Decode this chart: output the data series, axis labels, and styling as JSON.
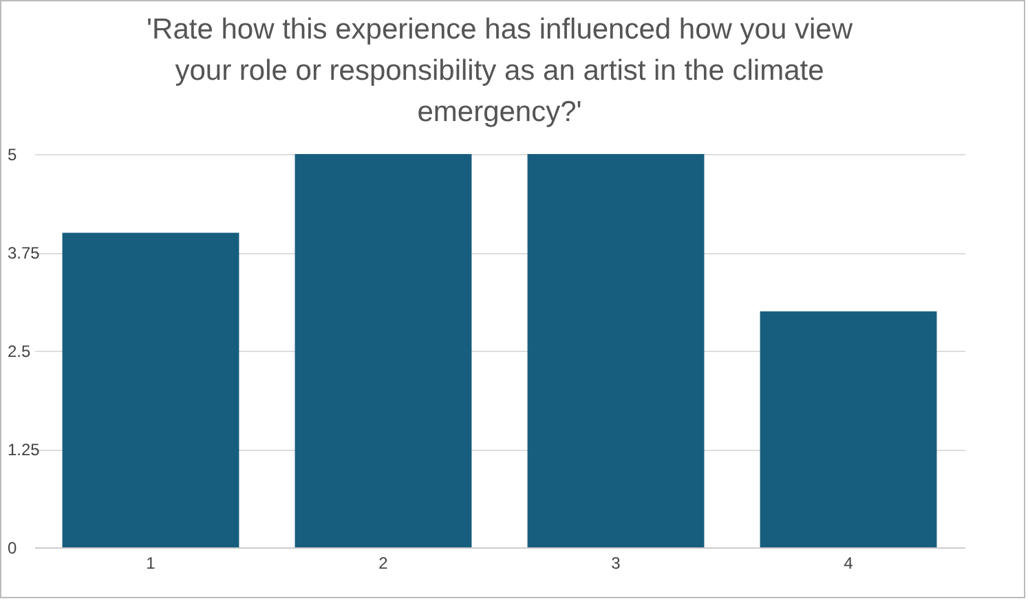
{
  "chart_data": {
    "type": "bar",
    "title": "'Rate how this experience has influenced how you view your role or responsibility as an artist in the climate emergency?'",
    "categories": [
      "1",
      "2",
      "3",
      "4"
    ],
    "values": [
      4,
      5,
      5,
      3
    ],
    "color": "#175e7e",
    "ylim": [
      0,
      5
    ],
    "yticks": [
      0,
      1.25,
      2.5,
      3.75,
      5
    ],
    "grid": "y"
  }
}
